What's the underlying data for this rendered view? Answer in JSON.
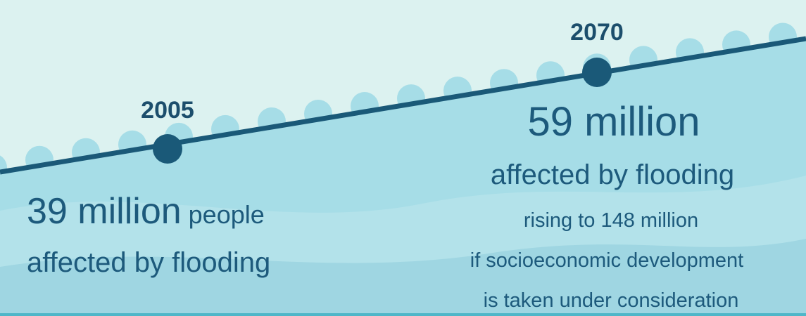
{
  "left": {
    "year": "2005",
    "amount": "39 million",
    "unit": "people",
    "caption": "affected by flooding"
  },
  "right": {
    "year": "2070",
    "amount": "59 million",
    "caption": "affected by flooding",
    "note_lines": [
      "rising to 148 million",
      "if socioeconomic development",
      "is taken under consideration"
    ]
  }
}
